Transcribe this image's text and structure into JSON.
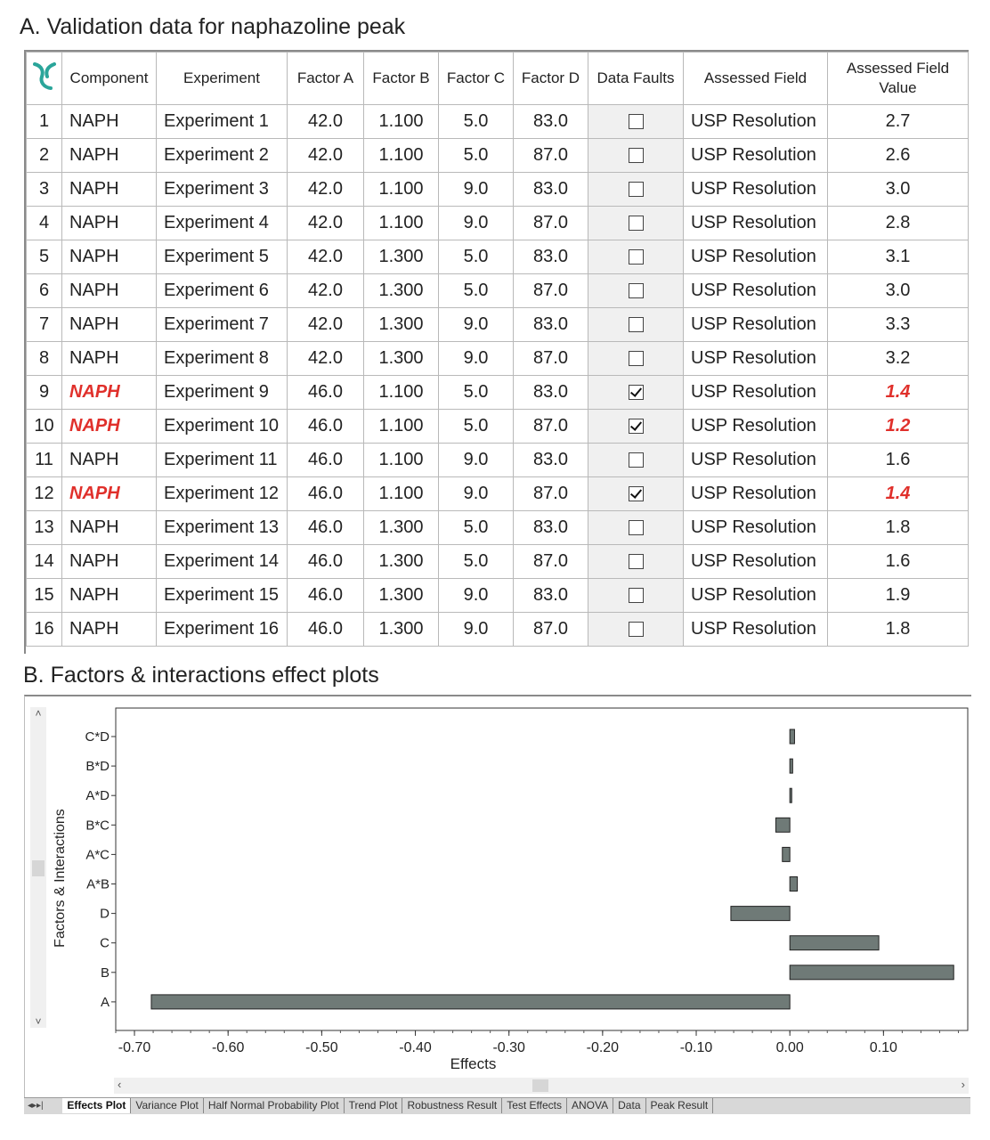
{
  "sectionA_title": "A. Validation data for naphazoline peak",
  "sectionB_title": "B. Factors & interactions effect plots",
  "table": {
    "headers": [
      "Component",
      "Experiment",
      "Factor A",
      "Factor B",
      "Factor C",
      "Factor D",
      "Data Faults",
      "Assessed Field",
      "Assessed Field Value"
    ],
    "header_last_line1": "Assessed Field",
    "header_last_line2": "Value",
    "rows": [
      {
        "idx": "1",
        "component": "NAPH",
        "experiment": "Experiment 1",
        "a": "42.0",
        "b": "1.100",
        "c": "5.0",
        "d": "83.0",
        "fault": false,
        "field": "USP Resolution",
        "value": "2.7"
      },
      {
        "idx": "2",
        "component": "NAPH",
        "experiment": "Experiment 2",
        "a": "42.0",
        "b": "1.100",
        "c": "5.0",
        "d": "87.0",
        "fault": false,
        "field": "USP Resolution",
        "value": "2.6"
      },
      {
        "idx": "3",
        "component": "NAPH",
        "experiment": "Experiment 3",
        "a": "42.0",
        "b": "1.100",
        "c": "9.0",
        "d": "83.0",
        "fault": false,
        "field": "USP Resolution",
        "value": "3.0"
      },
      {
        "idx": "4",
        "component": "NAPH",
        "experiment": "Experiment 4",
        "a": "42.0",
        "b": "1.100",
        "c": "9.0",
        "d": "87.0",
        "fault": false,
        "field": "USP Resolution",
        "value": "2.8"
      },
      {
        "idx": "5",
        "component": "NAPH",
        "experiment": "Experiment 5",
        "a": "42.0",
        "b": "1.300",
        "c": "5.0",
        "d": "83.0",
        "fault": false,
        "field": "USP Resolution",
        "value": "3.1"
      },
      {
        "idx": "6",
        "component": "NAPH",
        "experiment": "Experiment 6",
        "a": "42.0",
        "b": "1.300",
        "c": "5.0",
        "d": "87.0",
        "fault": false,
        "field": "USP Resolution",
        "value": "3.0"
      },
      {
        "idx": "7",
        "component": "NAPH",
        "experiment": "Experiment 7",
        "a": "42.0",
        "b": "1.300",
        "c": "9.0",
        "d": "83.0",
        "fault": false,
        "field": "USP Resolution",
        "value": "3.3"
      },
      {
        "idx": "8",
        "component": "NAPH",
        "experiment": "Experiment 8",
        "a": "42.0",
        "b": "1.300",
        "c": "9.0",
        "d": "87.0",
        "fault": false,
        "field": "USP Resolution",
        "value": "3.2"
      },
      {
        "idx": "9",
        "component": "NAPH",
        "experiment": "Experiment 9",
        "a": "46.0",
        "b": "1.100",
        "c": "5.0",
        "d": "83.0",
        "fault": true,
        "field": "USP Resolution",
        "value": "1.4"
      },
      {
        "idx": "10",
        "component": "NAPH",
        "experiment": "Experiment 10",
        "a": "46.0",
        "b": "1.100",
        "c": "5.0",
        "d": "87.0",
        "fault": true,
        "field": "USP Resolution",
        "value": "1.2"
      },
      {
        "idx": "11",
        "component": "NAPH",
        "experiment": "Experiment 11",
        "a": "46.0",
        "b": "1.100",
        "c": "9.0",
        "d": "83.0",
        "fault": false,
        "field": "USP Resolution",
        "value": "1.6"
      },
      {
        "idx": "12",
        "component": "NAPH",
        "experiment": "Experiment 12",
        "a": "46.0",
        "b": "1.100",
        "c": "9.0",
        "d": "87.0",
        "fault": true,
        "field": "USP Resolution",
        "value": "1.4"
      },
      {
        "idx": "13",
        "component": "NAPH",
        "experiment": "Experiment 13",
        "a": "46.0",
        "b": "1.300",
        "c": "5.0",
        "d": "83.0",
        "fault": false,
        "field": "USP Resolution",
        "value": "1.8"
      },
      {
        "idx": "14",
        "component": "NAPH",
        "experiment": "Experiment 14",
        "a": "46.0",
        "b": "1.300",
        "c": "5.0",
        "d": "87.0",
        "fault": false,
        "field": "USP Resolution",
        "value": "1.6"
      },
      {
        "idx": "15",
        "component": "NAPH",
        "experiment": "Experiment 15",
        "a": "46.0",
        "b": "1.300",
        "c": "9.0",
        "d": "83.0",
        "fault": false,
        "field": "USP Resolution",
        "value": "1.9"
      },
      {
        "idx": "16",
        "component": "NAPH",
        "experiment": "Experiment 16",
        "a": "46.0",
        "b": "1.300",
        "c": "9.0",
        "d": "87.0",
        "fault": false,
        "field": "USP Resolution",
        "value": "1.8"
      }
    ]
  },
  "colors": {
    "fault_text": "#e0302b",
    "bar_fill": "#6f7a77",
    "logo": "#2aa59a"
  },
  "chart_data": {
    "type": "bar",
    "orientation": "horizontal",
    "categories": [
      "C*D",
      "B*D",
      "A*D",
      "B*C",
      "A*C",
      "A*B",
      "D",
      "C",
      "B",
      "A"
    ],
    "values": [
      0.005,
      0.003,
      0.002,
      -0.015,
      -0.008,
      0.008,
      -0.063,
      0.095,
      0.175,
      -0.682
    ],
    "xlabel": "Effects",
    "ylabel": "Factors & Interactions",
    "xlim": [
      -0.72,
      0.19
    ],
    "xticks": [
      -0.7,
      -0.6,
      -0.5,
      -0.4,
      -0.3,
      -0.2,
      -0.1,
      0.0,
      0.1
    ],
    "xtick_labels": [
      "-0.70",
      "-0.60",
      "-0.50",
      "-0.40",
      "-0.30",
      "-0.20",
      "-0.10",
      "0.00",
      "0.10"
    ],
    "grid": false
  },
  "tabs": [
    "Effects Plot",
    "Variance Plot",
    "Half Normal Probability Plot",
    "Trend Plot",
    "Robustness Result",
    "Test Effects",
    "ANOVA",
    "Data",
    "Peak Result"
  ],
  "active_tab": "Effects Plot"
}
